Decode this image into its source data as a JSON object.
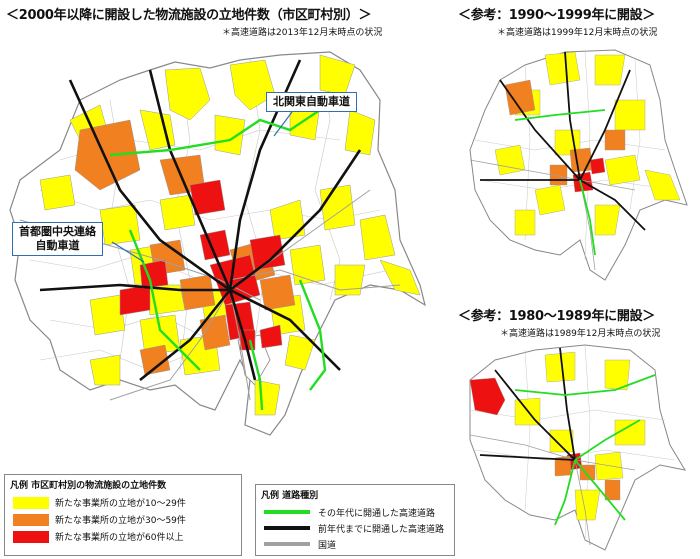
{
  "main_map": {
    "title": "＜2000年以降に開設した物流施設の立地件数（市区町村別）＞",
    "note": "＊高速道路は2013年12月末時点の状況",
    "callout_north": "北関東自動車道",
    "callout_ken_line1": "首都圏中央連絡",
    "callout_ken_line2": "自動車道"
  },
  "ref_1990": {
    "title": "＜参考：1990〜1999年に開設＞",
    "note": "＊高速道路は1999年12月末時点の状況"
  },
  "ref_1980": {
    "title": "＜参考：1980〜1989年に開設＞",
    "note": "＊高速道路は1989年12月末時点の状況"
  },
  "legend_facilities": {
    "title": "凡例  市区町村別の物流施設の立地件数",
    "items": [
      {
        "label": "新たな事業所の立地が10〜29件",
        "color": "#ffff00"
      },
      {
        "label": "新たな事業所の立地が30〜59件",
        "color": "#f08020"
      },
      {
        "label": "新たな事業所の立地が60件以上",
        "color": "#ee1111"
      }
    ]
  },
  "legend_roads": {
    "title": "凡例  道路種別",
    "items": [
      {
        "label": "その年代に開通した高速道路",
        "color": "#22dd22"
      },
      {
        "label": "前年代までに開通した高速道路",
        "color": "#111111"
      },
      {
        "label": "国道",
        "color": "#a0a0a0"
      }
    ]
  }
}
